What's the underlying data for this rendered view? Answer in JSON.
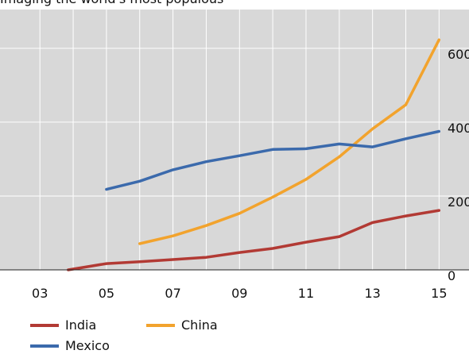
{
  "chart_data": {
    "type": "line",
    "title": "Imaging the world's most populous",
    "x": [
      3,
      4,
      5,
      6,
      7,
      8,
      9,
      10,
      11,
      12,
      13,
      14,
      15
    ],
    "x_tick_values": [
      3,
      5,
      7,
      9,
      11,
      13,
      15
    ],
    "x_tick_labels": [
      "03",
      "05",
      "07",
      "09",
      "11",
      "13",
      "15"
    ],
    "y_tick_values": [
      0,
      200,
      400,
      600
    ],
    "y_tick_labels": [
      "0",
      "200",
      "400",
      "600"
    ],
    "xlim": [
      1.8,
      15.9
    ],
    "ylim": [
      0,
      705
    ],
    "grid": true,
    "legend_position": "bottom-left",
    "series": [
      {
        "name": "India",
        "color": "#b23a34",
        "points": [
          [
            3.85,
            0
          ],
          [
            5,
            17
          ],
          [
            6,
            22
          ],
          [
            7,
            28
          ],
          [
            8,
            34
          ],
          [
            9,
            47
          ],
          [
            10,
            58
          ],
          [
            11,
            75
          ],
          [
            12,
            90
          ],
          [
            13,
            128
          ],
          [
            14,
            146
          ],
          [
            15,
            161
          ]
        ]
      },
      {
        "name": "China",
        "color": "#f2a32d",
        "points": [
          [
            6,
            71
          ],
          [
            7,
            92
          ],
          [
            8,
            120
          ],
          [
            9,
            153
          ],
          [
            10,
            197
          ],
          [
            11,
            245
          ],
          [
            12,
            306
          ],
          [
            13,
            382
          ],
          [
            14,
            447
          ],
          [
            15,
            623
          ]
        ]
      },
      {
        "name": "Mexico",
        "color": "#3b6aac",
        "points": [
          [
            5,
            218
          ],
          [
            6,
            240
          ],
          [
            7,
            271
          ],
          [
            8,
            293
          ],
          [
            9,
            309
          ],
          [
            10,
            326
          ],
          [
            11,
            328
          ],
          [
            12,
            341
          ],
          [
            13,
            333
          ],
          [
            14,
            355
          ],
          [
            15,
            375
          ]
        ]
      }
    ]
  }
}
